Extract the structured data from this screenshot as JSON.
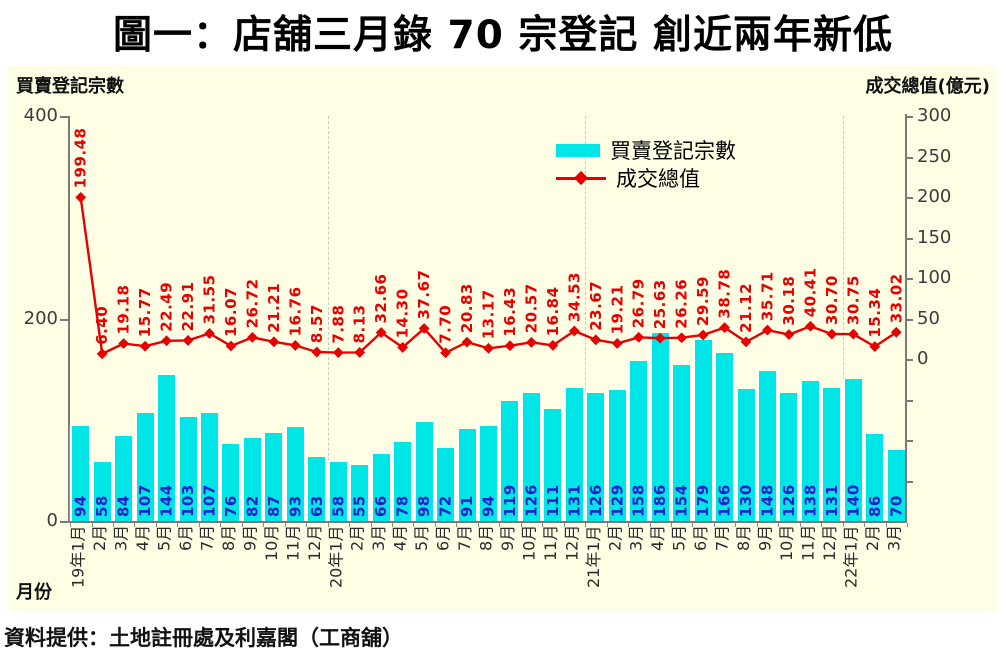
{
  "title": "圖一：店舖三月錄 70 宗登記 創近兩年新低",
  "source_note": "資料提供：土地註冊處及利嘉閣（工商舖）",
  "chart": {
    "left_axis_title": "買賣登記宗數",
    "right_axis_title": "成交總值(億元)",
    "x_axis_title": "月份",
    "left_axis_ticks": [
      400,
      200,
      0
    ],
    "right_axis_ticks": [
      300,
      250,
      200,
      150,
      100,
      50,
      0
    ],
    "legend": [
      {
        "label": "買賣登記宗數",
        "marker": "bar-swatch",
        "color": "#00E6E6"
      },
      {
        "label": "成交總值",
        "marker": "line-diamond",
        "color": "#E60000"
      }
    ],
    "colors": {
      "bar": "#00E6E6",
      "line": "#E60000",
      "bar_value_text": "#2121CC",
      "line_value_text": "#E60000",
      "plot_background": "#FFFFE1",
      "axis": "#7A7A7A"
    }
  },
  "chart_data": {
    "type": "bar+line",
    "categories": [
      "19年1月",
      "2月",
      "3月",
      "4月",
      "5月",
      "6月",
      "7月",
      "8月",
      "9月",
      "10月",
      "11月",
      "12月",
      "20年1月",
      "2月",
      "3月",
      "4月",
      "5月",
      "6月",
      "7月",
      "8月",
      "9月",
      "10月",
      "11月",
      "12月",
      "21年1月",
      "2月",
      "3月",
      "4月",
      "5月",
      "6月",
      "7月",
      "8月",
      "9月",
      "10月",
      "11月",
      "12月",
      "22年1月",
      "2月",
      "3月"
    ],
    "series": [
      {
        "name": "買賣登記宗數",
        "type": "bar",
        "axis": "left",
        "values": [
          94,
          58,
          84,
          107,
          144,
          103,
          107,
          76,
          82,
          87,
          93,
          63,
          58,
          55,
          66,
          78,
          98,
          72,
          91,
          94,
          119,
          126,
          111,
          131,
          126,
          129,
          158,
          186,
          154,
          179,
          166,
          130,
          148,
          126,
          138,
          131,
          140,
          86,
          70
        ]
      },
      {
        "name": "成交總值",
        "type": "line",
        "axis": "right",
        "values": [
          199.48,
          6.4,
          19.18,
          15.77,
          22.49,
          22.91,
          31.55,
          16.07,
          26.72,
          21.21,
          16.76,
          8.57,
          7.88,
          8.13,
          32.66,
          14.3,
          37.67,
          7.7,
          20.83,
          13.17,
          16.43,
          20.57,
          16.84,
          34.53,
          23.67,
          19.21,
          26.79,
          25.63,
          26.26,
          29.59,
          38.78,
          21.12,
          35.71,
          30.18,
          40.41,
          30.7,
          30.75,
          15.34,
          33.02
        ]
      }
    ],
    "left_ylim": [
      0,
      400
    ],
    "right_ylim": [
      0,
      300
    ],
    "right_axis_plotted_range": [
      -200,
      300
    ],
    "grid": "dashed vertical lines at year boundaries",
    "legend_position": "upper right inside plot"
  }
}
